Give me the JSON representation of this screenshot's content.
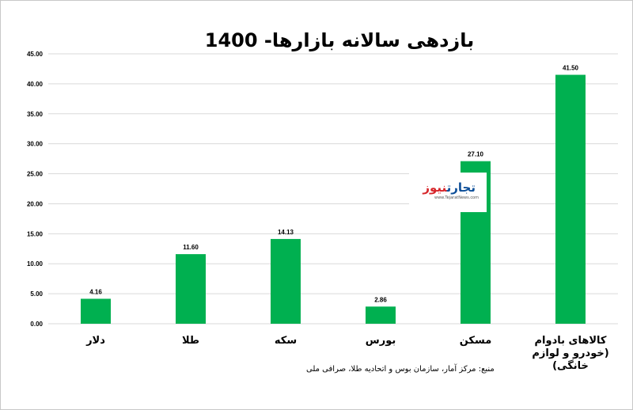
{
  "chart_data": {
    "type": "bar",
    "title": "بازدهی سالانه بازارها- 1400",
    "categories": [
      "دلار",
      "طلا",
      "سکه",
      "بورس",
      "مسکن",
      "کالاهای بادوام (خودرو و لوازم خانگی)"
    ],
    "category_lines": [
      [
        "دلار"
      ],
      [
        "طلا"
      ],
      [
        "سکه"
      ],
      [
        "بورس"
      ],
      [
        "مسکن"
      ],
      [
        "کالاهای بادوام",
        "(خودرو و لوازم",
        "خانگی)"
      ]
    ],
    "values": [
      4.16,
      11.6,
      14.13,
      2.86,
      27.1,
      41.5
    ],
    "value_labels": [
      "4.16",
      "11.60",
      "14.13",
      "2.86",
      "27.10",
      "41.50"
    ],
    "ylim": [
      0,
      45
    ],
    "yticks": [
      "0.00",
      "5.00",
      "10.00",
      "15.00",
      "20.00",
      "25.00",
      "30.00",
      "35.00",
      "40.00",
      "45.00"
    ],
    "grid": true,
    "bar_color": "#00b050",
    "source": "منبع: مرکز آمار، سازمان بوس و اتحادیه طلا، صرافی ملی"
  },
  "watermark": {
    "brand_part1": "تجارت",
    "brand_part2": "نیوز",
    "url": "www.TejaratNews.com",
    "primary_color": "#0e4f99",
    "accent_color": "#d7262b"
  }
}
